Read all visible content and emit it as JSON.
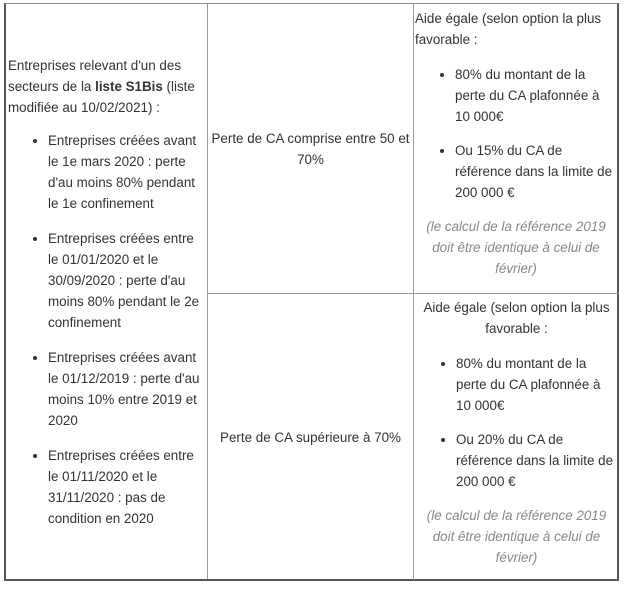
{
  "left_cell": {
    "intro_before": "Entreprises relevant d'un des secteurs de la ",
    "intro_bold": "liste S1Bis",
    "intro_after": " (liste modifiée au 10/02/2021) :",
    "items": [
      "Entreprises créées avant le 1e mars 2020 : perte d'au moins 80% pendant le 1e confinement",
      "Entreprises créées entre le 01/01/2020 et le 30/09/2020 : perte d'au moins 80% pendant le 2e confinement",
      "Entreprises créées avant le 01/12/2019 : perte d'au moins 10% entre 2019 et 2020",
      "Entreprises créées entre le 01/11/2020 et le 31/11/2020 : pas de condition en 2020"
    ]
  },
  "rows": [
    {
      "condition": "Perte de CA comprise entre 50 et 70%",
      "aid_intro": "Aide égale (selon option la plus favorable :",
      "aid_items": [
        "80% du montant de la perte du CA plafonnée à 10 000€",
        "Ou 15% du CA de référence dans la limite de 200 000 €"
      ],
      "note": "(le calcul de la référence 2019 doit être identique à celui de février)"
    },
    {
      "condition": "Perte de CA supérieure à 70%",
      "aid_intro": "Aide égale (selon option la plus favorable :",
      "aid_items": [
        "80% du montant de la perte du CA plafonnée à 10 000€",
        "Ou 20% du CA de référence dans la limite de 200 000 €"
      ],
      "note": "(le calcul de la référence 2019 doit être identique à celui de février)"
    }
  ]
}
